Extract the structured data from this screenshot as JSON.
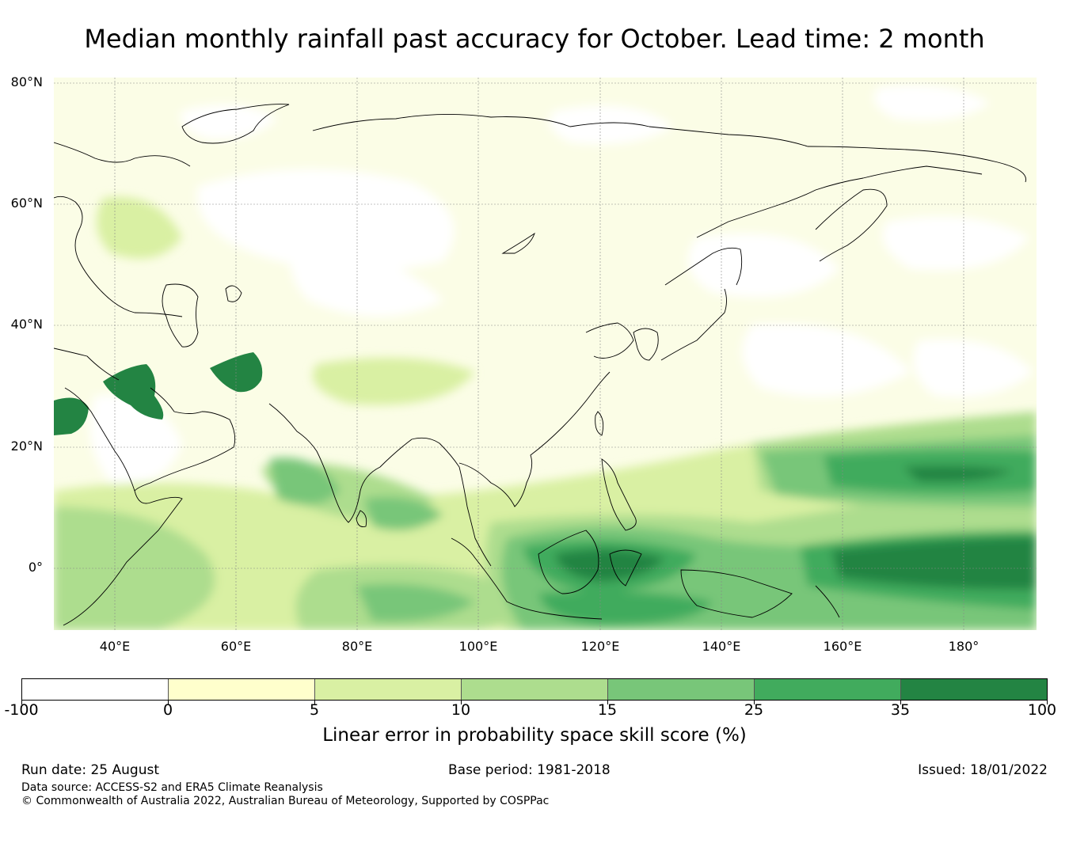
{
  "title": "Median monthly rainfall past accuracy for October. Lead time: 2 month",
  "map": {
    "lat_labels": [
      "80°N",
      "60°N",
      "40°N",
      "20°N",
      "0°"
    ],
    "lon_labels": [
      "40°E",
      "60°E",
      "80°E",
      "100°E",
      "120°E",
      "140°E",
      "160°E",
      "180°"
    ],
    "extent": {
      "lon_min": 30,
      "lon_max": 192,
      "lat_min": -10,
      "lat_max": 81
    },
    "gridlines": true
  },
  "colorbar": {
    "label": "Linear error in probability space skill score (%)",
    "ticks": [
      "-100",
      "0",
      "5",
      "10",
      "15",
      "25",
      "35",
      "100"
    ],
    "colors": [
      "#ffffff",
      "#ffffcc",
      "#d9f0a3",
      "#addd8e",
      "#78c679",
      "#41ab5d",
      "#238443"
    ]
  },
  "footer": {
    "run_date": "Run date: 25 August",
    "base_period": "Base period: 1981-2018",
    "issued": "Issued: 18/01/2022",
    "data_source": "Data source: ACCESS-S2 and ERA5 Climate Reanalysis",
    "copyright": "© Commonwealth of Australia 2022, Australian Bureau of Meteorology, Supported by COSPPac"
  }
}
